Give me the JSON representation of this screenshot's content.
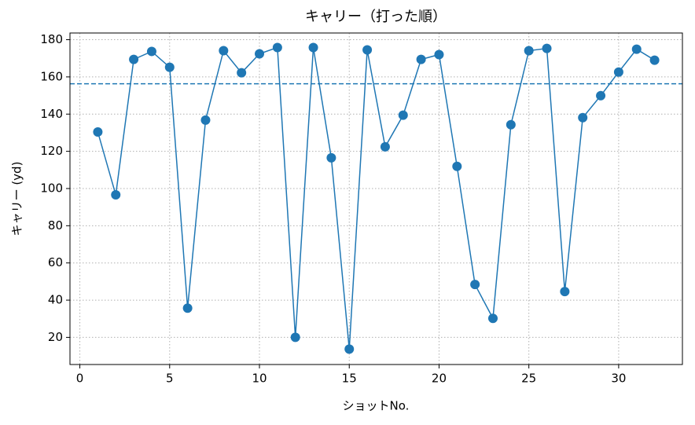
{
  "chart_data": {
    "type": "line",
    "title": "キャリー（打った順）",
    "xlabel": "ショットNo.",
    "ylabel": "キャリー (yd)",
    "x": [
      1,
      2,
      3,
      4,
      5,
      6,
      7,
      8,
      9,
      10,
      11,
      12,
      13,
      14,
      15,
      16,
      17,
      18,
      19,
      20,
      21,
      22,
      23,
      24,
      25,
      26,
      27,
      28,
      29,
      30,
      31,
      32
    ],
    "series": [
      {
        "color": "#1f77b4",
        "values": [
          130.4,
          96.6,
          169.4,
          173.7,
          165.2,
          35.7,
          136.8,
          174.1,
          162.2,
          172.4,
          175.8,
          20,
          175.8,
          116.5,
          13.7,
          174.5,
          122.4,
          139.4,
          169.4,
          172,
          111.9,
          48.4,
          30.2,
          134.3,
          174.1,
          175.3,
          44.6,
          138.1,
          149.9,
          162.6,
          174.9,
          169
        ]
      }
    ],
    "hline": {
      "value": 156.3,
      "color": "#1f77b4",
      "style": "dashed"
    },
    "xlim": [
      -0.55,
      33.55
    ],
    "xticks": [
      0,
      5,
      10,
      15,
      20,
      25,
      30
    ],
    "ylim": [
      5.4,
      183.6
    ],
    "yticks": [
      20,
      40,
      60,
      80,
      100,
      120,
      140,
      160,
      180
    ],
    "grid": true
  }
}
